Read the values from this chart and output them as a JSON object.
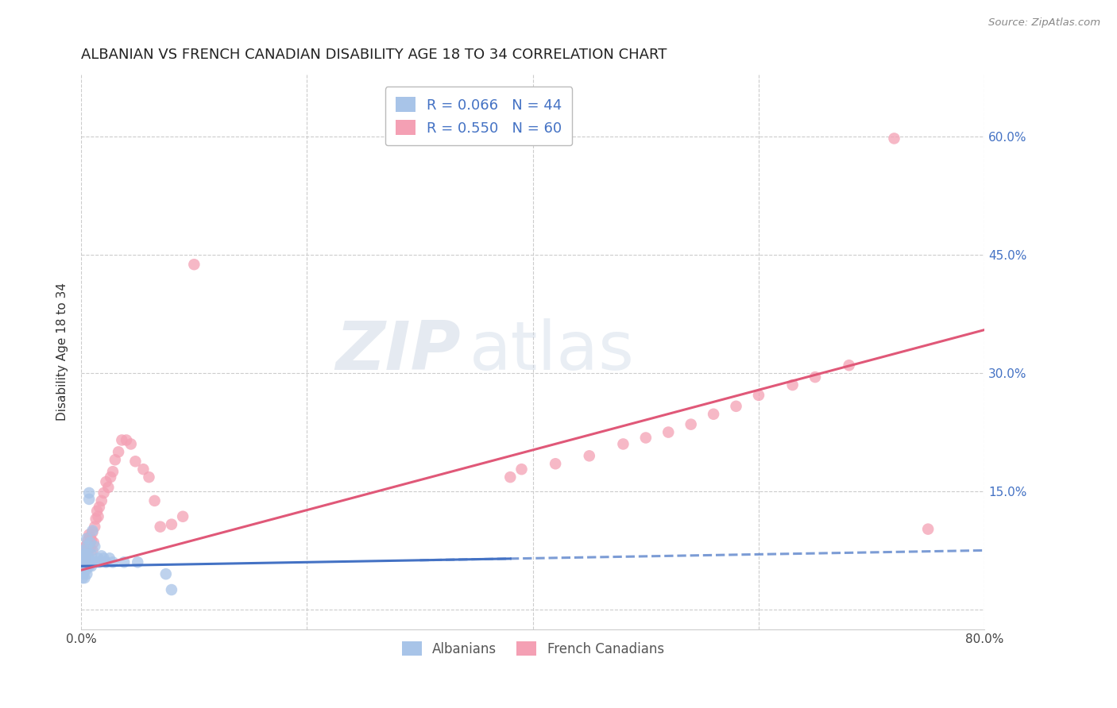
{
  "title": "ALBANIAN VS FRENCH CANADIAN DISABILITY AGE 18 TO 34 CORRELATION CHART",
  "source": "Source: ZipAtlas.com",
  "ylabel": "Disability Age 18 to 34",
  "xlim": [
    0.0,
    0.8
  ],
  "ylim": [
    -0.025,
    0.68
  ],
  "albanian_color": "#a8c4e8",
  "albanian_line_color": "#4472c4",
  "albanian_dash_color": "#a8c4e8",
  "french_color": "#f4a0b4",
  "french_line_color": "#e05878",
  "legend_label1": "Albanians",
  "legend_label2": "French Canadians",
  "legend_r1": "R = 0.066",
  "legend_n1": "N = 44",
  "legend_r2": "R = 0.550",
  "legend_n2": "N = 60",
  "watermark_zip": "ZIP",
  "watermark_atlas": "atlas",
  "title_fontsize": 13,
  "tick_color": "#4472c4",
  "right_ytick_labels": [
    "",
    "15.0%",
    "30.0%",
    "45.0%",
    "60.0%"
  ],
  "right_ytick_vals": [
    0.0,
    0.15,
    0.3,
    0.45,
    0.6
  ],
  "albanian_x": [
    0.001,
    0.001,
    0.001,
    0.002,
    0.002,
    0.002,
    0.002,
    0.003,
    0.003,
    0.003,
    0.003,
    0.004,
    0.004,
    0.004,
    0.005,
    0.005,
    0.005,
    0.005,
    0.006,
    0.006,
    0.006,
    0.007,
    0.007,
    0.007,
    0.008,
    0.008,
    0.009,
    0.009,
    0.01,
    0.01,
    0.011,
    0.012,
    0.013,
    0.015,
    0.016,
    0.018,
    0.02,
    0.022,
    0.025,
    0.028,
    0.038,
    0.05,
    0.075,
    0.08
  ],
  "albanian_y": [
    0.05,
    0.06,
    0.04,
    0.055,
    0.065,
    0.045,
    0.07,
    0.055,
    0.065,
    0.04,
    0.075,
    0.06,
    0.07,
    0.05,
    0.06,
    0.08,
    0.045,
    0.09,
    0.055,
    0.07,
    0.065,
    0.14,
    0.148,
    0.055,
    0.06,
    0.085,
    0.07,
    0.055,
    0.06,
    0.1,
    0.06,
    0.08,
    0.06,
    0.065,
    0.06,
    0.068,
    0.065,
    0.06,
    0.065,
    0.06,
    0.06,
    0.06,
    0.045,
    0.025
  ],
  "french_x": [
    0.001,
    0.001,
    0.002,
    0.002,
    0.003,
    0.003,
    0.004,
    0.004,
    0.005,
    0.005,
    0.006,
    0.006,
    0.007,
    0.007,
    0.008,
    0.008,
    0.009,
    0.01,
    0.01,
    0.011,
    0.012,
    0.013,
    0.014,
    0.015,
    0.016,
    0.018,
    0.02,
    0.022,
    0.024,
    0.026,
    0.028,
    0.03,
    0.033,
    0.036,
    0.04,
    0.044,
    0.048,
    0.055,
    0.06,
    0.065,
    0.07,
    0.08,
    0.09,
    0.1,
    0.38,
    0.39,
    0.42,
    0.45,
    0.48,
    0.5,
    0.52,
    0.54,
    0.56,
    0.58,
    0.6,
    0.63,
    0.65,
    0.68,
    0.72,
    0.75
  ],
  "french_y": [
    0.055,
    0.065,
    0.058,
    0.07,
    0.062,
    0.075,
    0.068,
    0.08,
    0.072,
    0.082,
    0.078,
    0.088,
    0.085,
    0.095,
    0.092,
    0.078,
    0.088,
    0.075,
    0.098,
    0.085,
    0.105,
    0.115,
    0.125,
    0.118,
    0.13,
    0.138,
    0.148,
    0.162,
    0.155,
    0.168,
    0.175,
    0.19,
    0.2,
    0.215,
    0.215,
    0.21,
    0.188,
    0.178,
    0.168,
    0.138,
    0.105,
    0.108,
    0.118,
    0.438,
    0.168,
    0.178,
    0.185,
    0.195,
    0.21,
    0.218,
    0.225,
    0.235,
    0.248,
    0.258,
    0.272,
    0.285,
    0.295,
    0.31,
    0.598,
    0.102
  ]
}
